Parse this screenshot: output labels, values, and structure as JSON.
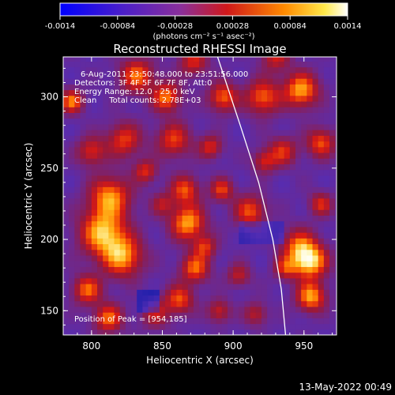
{
  "chart_data": {
    "type": "heatmap",
    "title": "Reconstructed RHESSI Image",
    "xlabel": "Heliocentric X (arcsec)",
    "ylabel": "Heliocentric Y (arcsec)",
    "xlim": [
      780,
      973
    ],
    "ylim": [
      133,
      328
    ],
    "x_ticks": [
      "800",
      "850",
      "900",
      "950"
    ],
    "x_tick_values": [
      800,
      850,
      900,
      950
    ],
    "y_ticks": [
      "150",
      "200",
      "250",
      "300"
    ],
    "y_tick_values": [
      150,
      200,
      250,
      300
    ],
    "colorbar": {
      "min": -0.0014,
      "max": 0.0014,
      "tick_labels": [
        "-0.0014",
        "-0.00084",
        "-0.00028",
        "0.00028",
        "0.00084",
        "0.0014"
      ],
      "tick_values": [
        -0.0014,
        -0.00084,
        -0.00028,
        0.00028,
        0.00084,
        0.0014
      ],
      "units_label": "(photons cm⁻² s⁻¹ asec⁻²)",
      "colors": [
        "#0000ff",
        "#7a2fd0",
        "#c81c1c",
        "#ff7a00",
        "#ffe94a",
        "#ffffff"
      ]
    },
    "annotations": [
      "6-Aug-2011 23:50:48.000 to 23:51:56.000",
      "Detectors: 3F 4F 5F 6F 7F 8F, Att:0",
      "Energy Range: 12.0 - 25.0 keV",
      "Clean     Total counts: 2.78E+03"
    ],
    "peak_label": "Position of Peak = [954,185]",
    "peak": [
      954,
      185
    ],
    "limb_curve": [
      [
        889,
        328
      ],
      [
        905,
        280
      ],
      [
        918,
        240
      ],
      [
        928,
        200
      ],
      [
        934,
        165
      ],
      [
        937,
        133
      ]
    ],
    "grid": false
  },
  "footer": {
    "date": "13-May-2022 00:49"
  }
}
